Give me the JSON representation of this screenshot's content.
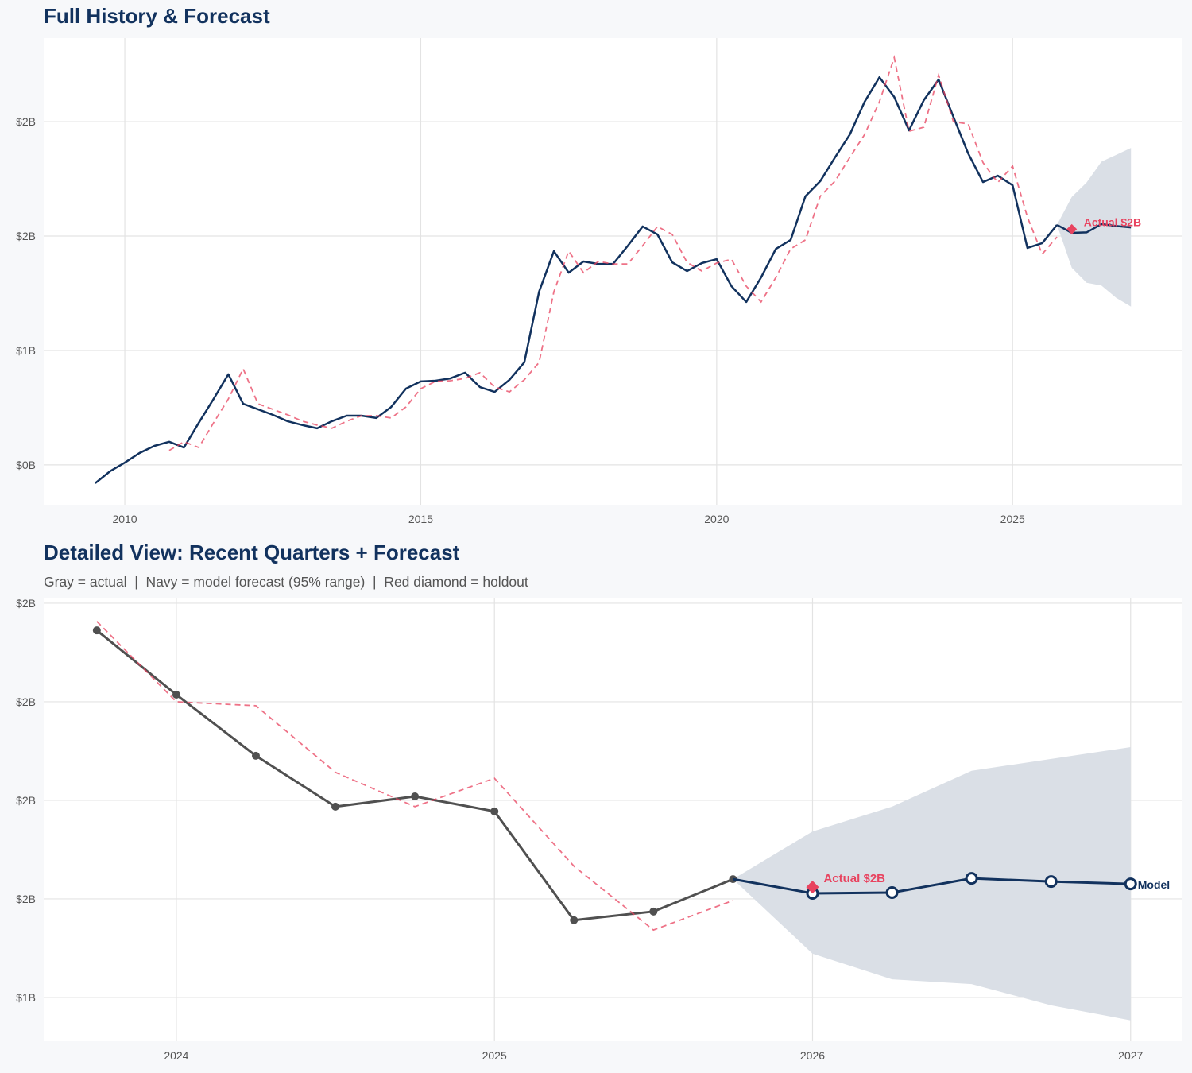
{
  "top": {
    "title": "Full History & Forecast"
  },
  "bottom": {
    "title": "Detailed View: Recent Quarters + Forecast",
    "subtitle": "Gray = actual  |  Navy = model forecast (95% range)  |  Red diamond = holdout"
  },
  "colors": {
    "navy": "#12325e",
    "gray": "#505050",
    "red": "#e8435f",
    "band": "#dadfe6",
    "grid": "#e3e3e3",
    "plot_bg": "#ffffff",
    "page_bg": "#f7f8fa"
  },
  "chart_data": [
    {
      "type": "line",
      "title": "Full History & Forecast",
      "xlim": [
        2008.63,
        2027.87
      ],
      "ylim": [
        0.326,
        2.365
      ],
      "x_ticks": [
        2010,
        2015,
        2020,
        2025
      ],
      "x_tick_labels": [
        "2010",
        "2015",
        "2020",
        "2025"
      ],
      "y_ticks": [
        0.5,
        1.0,
        1.5,
        2.0
      ],
      "y_tick_labels": [
        "$0B",
        "$1B",
        "$2B",
        "$2B"
      ],
      "grid": true,
      "series": [
        {
          "role": "history",
          "style": "solid navy line",
          "x": [
            2009.5,
            2009.75,
            2010,
            2010.25,
            2010.5,
            2010.75,
            2011,
            2011.25,
            2011.5,
            2011.75,
            2012,
            2012.25,
            2012.5,
            2012.75,
            2013,
            2013.25,
            2013.5,
            2013.75,
            2014,
            2014.25,
            2014.5,
            2014.75,
            2015,
            2015.25,
            2015.5,
            2015.75,
            2016,
            2016.25,
            2016.5,
            2016.75,
            2017,
            2017.25,
            2017.5,
            2017.75,
            2018,
            2018.25,
            2018.5,
            2018.75,
            2019,
            2019.25,
            2019.5,
            2019.75,
            2020,
            2020.25,
            2020.5,
            2020.75,
            2021,
            2021.25,
            2021.5,
            2021.75,
            2022,
            2022.25,
            2022.5,
            2022.75,
            2023,
            2023.25,
            2023.5,
            2023.75,
            2024,
            2024.25,
            2024.5,
            2024.75,
            2025,
            2025.25,
            2025.5,
            2025.75
          ],
          "values": [
            0.42,
            0.472,
            0.51,
            0.552,
            0.583,
            0.601,
            0.576,
            0.684,
            0.788,
            0.896,
            0.767,
            0.743,
            0.719,
            0.691,
            0.674,
            0.66,
            0.691,
            0.715,
            0.715,
            0.705,
            0.753,
            0.833,
            0.865,
            0.868,
            0.878,
            0.903,
            0.84,
            0.819,
            0.872,
            0.948,
            1.257,
            1.434,
            1.34,
            1.389,
            1.378,
            1.378,
            1.458,
            1.542,
            1.507,
            1.385,
            1.347,
            1.382,
            1.399,
            1.281,
            1.212,
            1.319,
            1.444,
            1.483,
            1.674,
            1.74,
            1.844,
            1.944,
            2.087,
            2.194,
            2.108,
            1.962,
            2.094,
            2.184,
            2.021,
            1.861,
            1.736,
            1.764,
            1.722,
            1.448,
            1.469,
            1.549
          ]
        },
        {
          "role": "fitted",
          "style": "dashed red line",
          "x": [
            2010.75,
            2011,
            2011.25,
            2011.5,
            2011.75,
            2012,
            2012.25,
            2012.5,
            2012.75,
            2013,
            2013.25,
            2013.5,
            2013.75,
            2014,
            2014.25,
            2014.5,
            2014.75,
            2015,
            2015.25,
            2015.5,
            2015.75,
            2016,
            2016.25,
            2016.5,
            2016.75,
            2017,
            2017.25,
            2017.5,
            2017.75,
            2018,
            2018.25,
            2018.5,
            2018.75,
            2019,
            2019.25,
            2019.5,
            2019.75,
            2020,
            2020.25,
            2020.5,
            2020.75,
            2021,
            2021.25,
            2021.5,
            2021.75,
            2022,
            2022.25,
            2022.5,
            2022.75,
            2023,
            2023.25,
            2023.5,
            2023.75,
            2024,
            2024.25,
            2024.5,
            2024.75,
            2025,
            2025.25,
            2025.5,
            2025.75
          ],
          "values": [
            0.563,
            0.601,
            0.576,
            0.684,
            0.788,
            0.92,
            0.767,
            0.743,
            0.719,
            0.691,
            0.674,
            0.66,
            0.691,
            0.715,
            0.715,
            0.705,
            0.753,
            0.833,
            0.865,
            0.868,
            0.878,
            0.903,
            0.84,
            0.819,
            0.872,
            0.948,
            1.257,
            1.434,
            1.34,
            1.389,
            1.378,
            1.378,
            1.458,
            1.542,
            1.507,
            1.385,
            1.347,
            1.382,
            1.399,
            1.281,
            1.212,
            1.319,
            1.444,
            1.483,
            1.674,
            1.74,
            1.844,
            1.944,
            2.087,
            2.28,
            1.958,
            1.976,
            2.204,
            2.0,
            1.99,
            1.821,
            1.734,
            1.806,
            1.583,
            1.421,
            1.496
          ]
        },
        {
          "role": "forecast",
          "style": "solid navy line with 95% band",
          "x": [
            2025.75,
            2026,
            2026.25,
            2026.5,
            2026.75,
            2027
          ],
          "values": [
            1.549,
            1.514,
            1.516,
            1.552,
            1.544,
            1.538
          ],
          "lower": [
            1.549,
            1.361,
            1.296,
            1.284,
            1.23,
            1.192
          ],
          "upper": [
            1.549,
            1.671,
            1.734,
            1.825,
            1.855,
            1.885
          ]
        }
      ],
      "holdout": {
        "x": 2026,
        "value": 1.53,
        "label": "Actual $2B"
      }
    },
    {
      "type": "line",
      "title": "Detailed View: Recent Quarters + Forecast",
      "xlim": [
        2023.583,
        2027.163
      ],
      "ylim": [
        1.139,
        2.264
      ],
      "x_ticks": [
        2024,
        2025,
        2026,
        2027
      ],
      "x_tick_labels": [
        "2024",
        "2025",
        "2026",
        "2027"
      ],
      "y_ticks": [
        1.25,
        1.5,
        1.75,
        2.0,
        2.25
      ],
      "y_tick_labels": [
        "$1B",
        "$2B",
        "$2B",
        "$2B",
        "$2B"
      ],
      "grid": true,
      "series": [
        {
          "role": "actual",
          "style": "gray line with dots",
          "x": [
            2023.75,
            2024,
            2024.25,
            2024.5,
            2024.75,
            2025,
            2025.25,
            2025.5,
            2025.75
          ],
          "values": [
            2.181,
            2.018,
            1.863,
            1.734,
            1.76,
            1.722,
            1.446,
            1.468,
            1.55
          ]
        },
        {
          "role": "fitted",
          "style": "dashed red line",
          "x": [
            2023.75,
            2024,
            2024.25,
            2024.5,
            2024.75,
            2025,
            2025.25,
            2025.5,
            2025.75
          ],
          "values": [
            2.204,
            2.0,
            1.99,
            1.821,
            1.734,
            1.806,
            1.583,
            1.421,
            1.496
          ]
        },
        {
          "role": "forecast",
          "name": "Model",
          "style": "navy line with open circles and 95% band",
          "x": [
            2025.75,
            2026,
            2026.25,
            2026.5,
            2026.75,
            2027
          ],
          "values": [
            1.55,
            1.514,
            1.516,
            1.552,
            1.544,
            1.538
          ],
          "lower": [
            1.55,
            1.361,
            1.296,
            1.284,
            1.23,
            1.192
          ],
          "upper": [
            1.55,
            1.671,
            1.734,
            1.825,
            1.855,
            1.885
          ]
        }
      ],
      "holdout": {
        "x": 2026,
        "value": 1.53,
        "label": "Actual $2B"
      },
      "end_label": "Model"
    }
  ]
}
